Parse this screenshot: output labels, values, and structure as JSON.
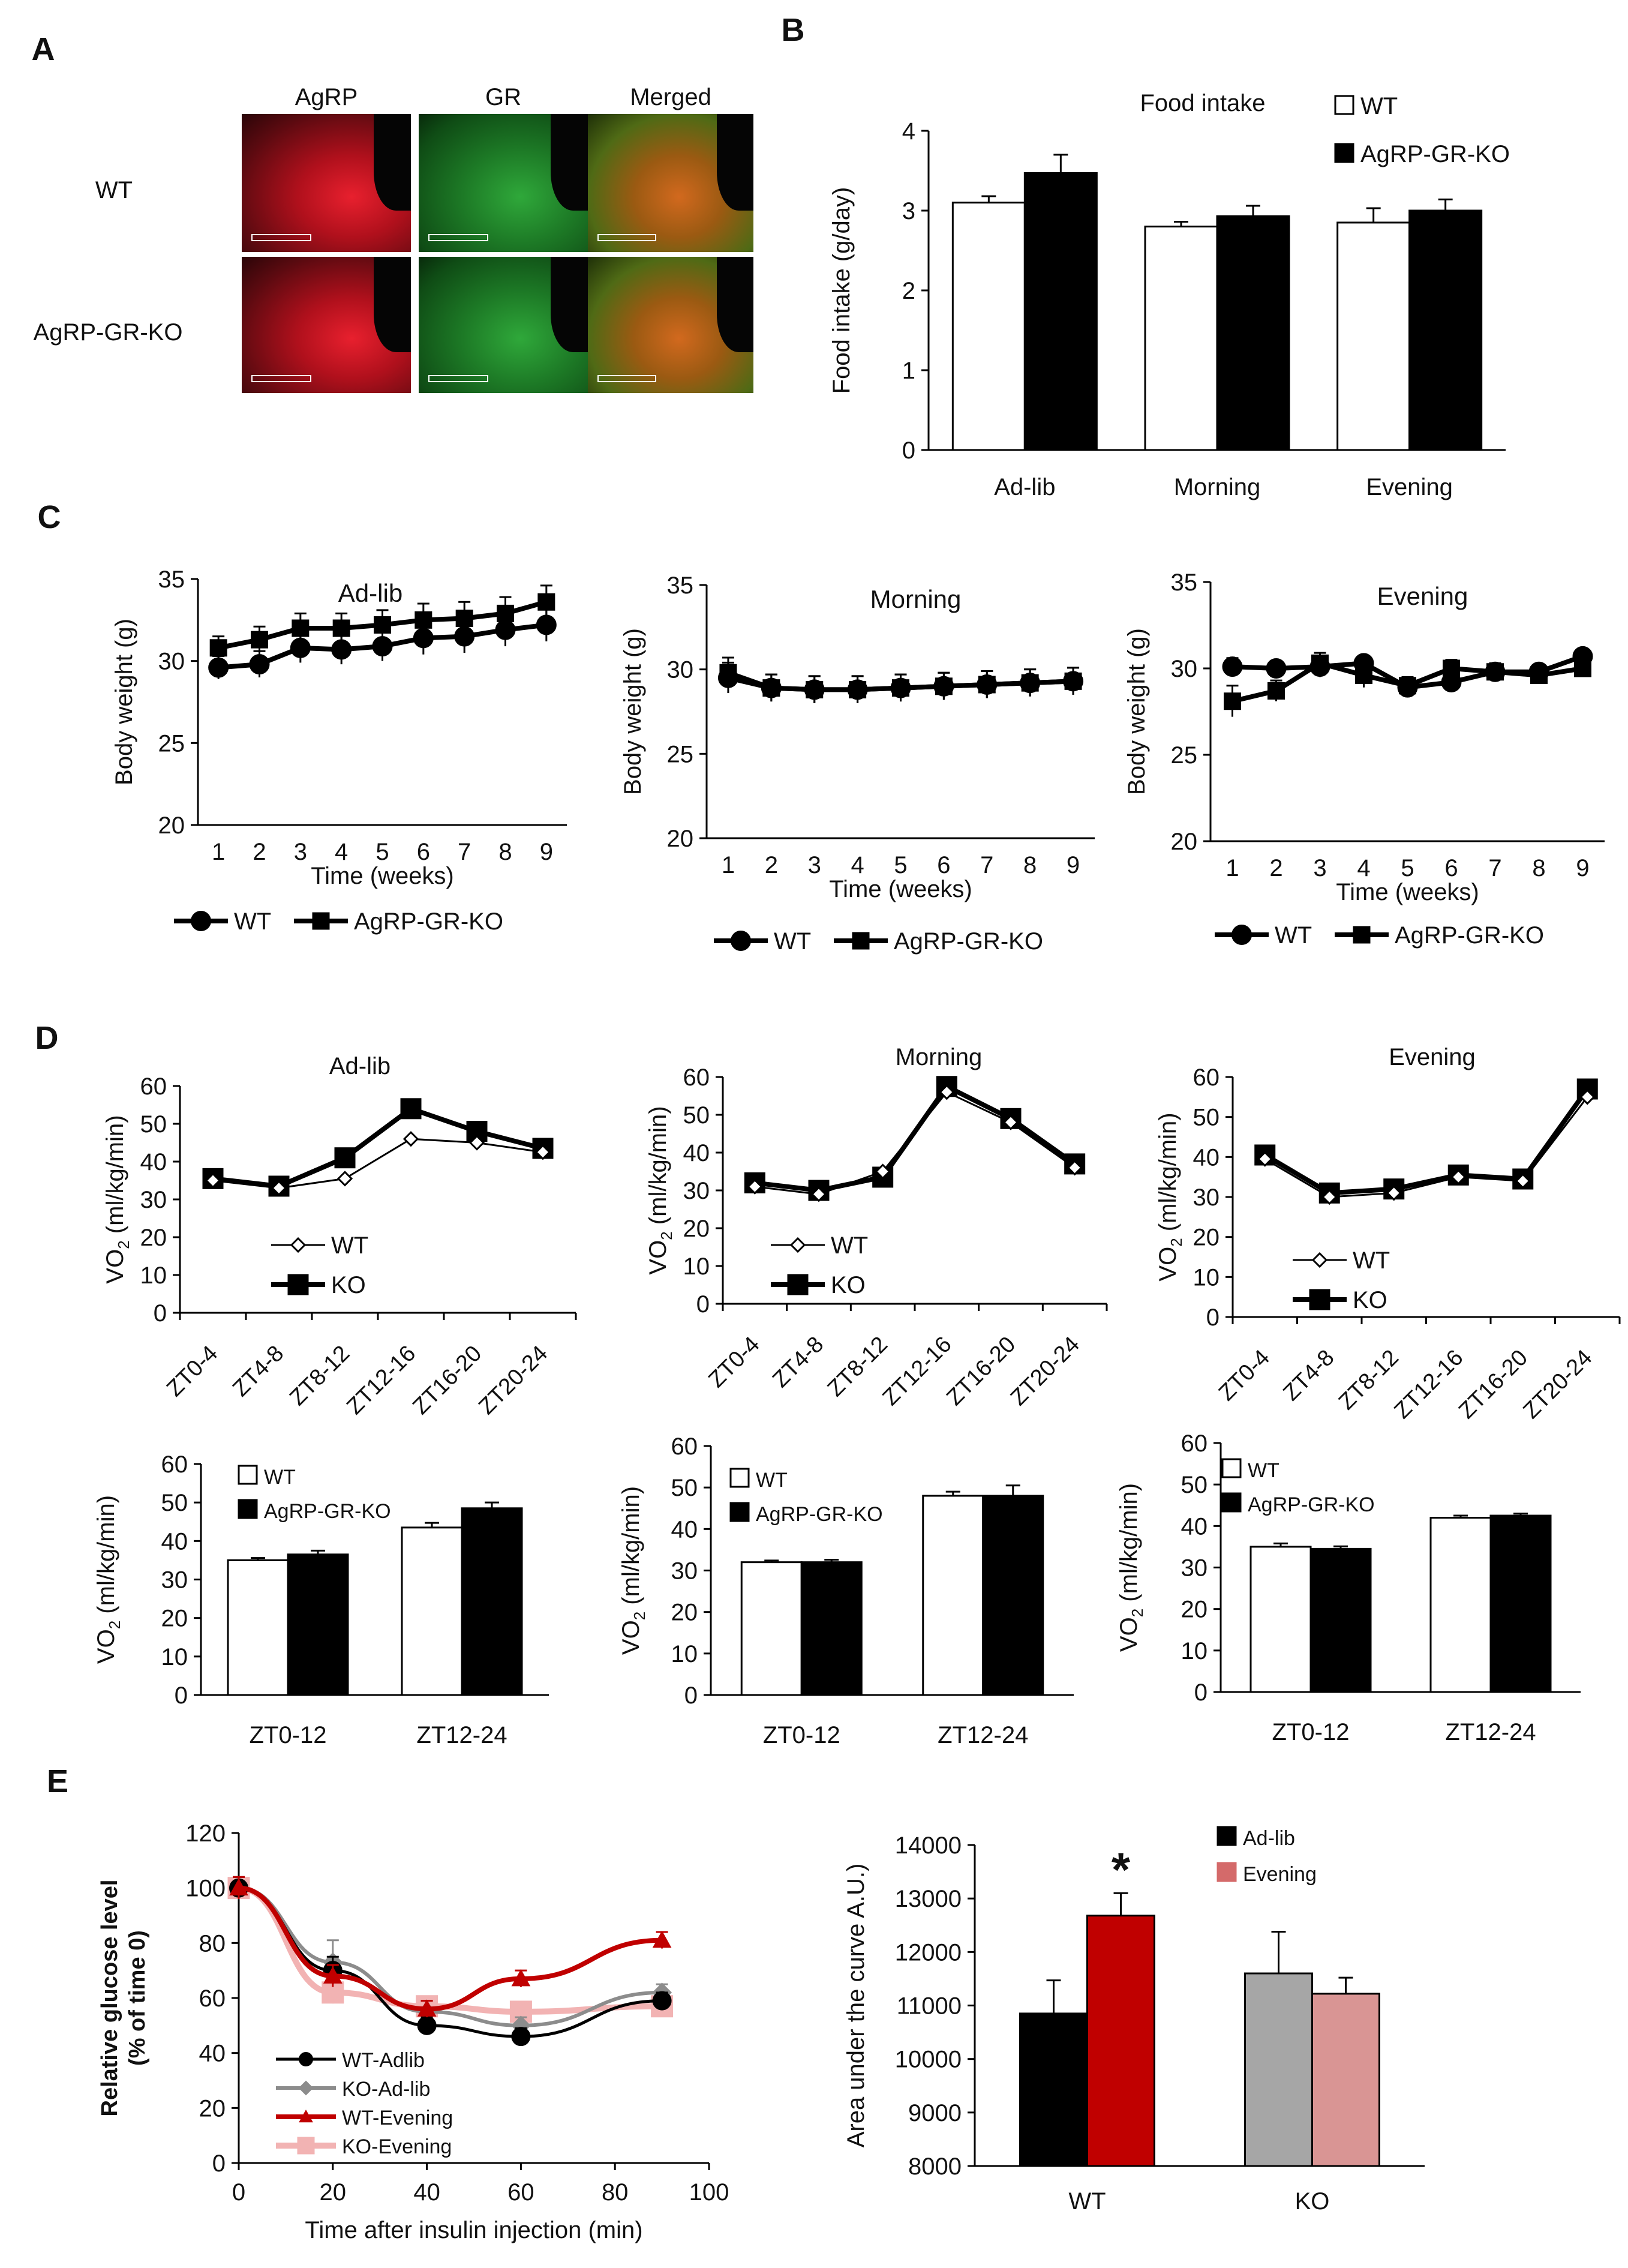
{
  "panel_letters": [
    "A",
    "B",
    "C",
    "D",
    "E"
  ],
  "micrograph": {
    "column_labels": [
      "AgRP",
      "GR",
      "Merged"
    ],
    "row_labels": [
      "WT",
      "AgRP-GR-KO"
    ]
  },
  "chart_data": [
    {
      "id": "B",
      "type": "bar",
      "title": "Food intake",
      "xlabel": "",
      "ylabel": "Food intake (g/day)",
      "categories": [
        "Ad-lib",
        "Morning",
        "Evening"
      ],
      "series": [
        {
          "name": "WT",
          "fill": "#ffffff",
          "values": [
            3.1,
            2.8,
            2.85
          ],
          "errors": [
            0.08,
            0.06,
            0.18
          ]
        },
        {
          "name": "AgRP-GR-KO",
          "fill": "#000000",
          "values": [
            3.47,
            2.93,
            3.0
          ],
          "errors": [
            0.23,
            0.13,
            0.14
          ]
        }
      ],
      "ylim": [
        0,
        4
      ],
      "yticks": [
        "0",
        "1",
        "2",
        "3",
        "4"
      ],
      "legend": "top-right"
    },
    {
      "id": "C1",
      "type": "line",
      "title": "Ad-lib",
      "xlabel": "Time (weeks)",
      "ylabel": "Body weight (g)",
      "x": [
        "1",
        "2",
        "3",
        "4",
        "5",
        "6",
        "7",
        "8",
        "9"
      ],
      "series": [
        {
          "name": "WT",
          "marker": "circle",
          "values": [
            29.6,
            29.8,
            30.8,
            30.7,
            30.9,
            31.4,
            31.5,
            31.9,
            32.2
          ],
          "errors": [
            0.7,
            0.8,
            0.9,
            0.9,
            0.9,
            1.0,
            1.0,
            1.0,
            1.0
          ]
        },
        {
          "name": "AgRP-GR-KO",
          "marker": "square",
          "values": [
            30.8,
            31.3,
            32.0,
            32.0,
            32.2,
            32.5,
            32.6,
            32.9,
            33.6
          ],
          "errors": [
            0.7,
            0.8,
            0.9,
            0.9,
            0.9,
            1.0,
            1.0,
            1.0,
            1.0
          ]
        }
      ],
      "ylim": [
        20,
        35
      ],
      "yticks": [
        "20",
        "25",
        "30",
        "35"
      ],
      "legend": "bottom"
    },
    {
      "id": "C2",
      "type": "line",
      "title": "Morning",
      "xlabel": "Time (weeks)",
      "ylabel": "Body weight (g)",
      "x": [
        "1",
        "2",
        "3",
        "4",
        "5",
        "6",
        "7",
        "8",
        "9"
      ],
      "series": [
        {
          "name": "WT",
          "marker": "circle",
          "values": [
            29.5,
            28.9,
            28.8,
            28.8,
            28.9,
            29.0,
            29.1,
            29.2,
            29.3
          ],
          "errors": [
            0.9,
            0.8,
            0.8,
            0.8,
            0.8,
            0.8,
            0.8,
            0.8,
            0.8
          ]
        },
        {
          "name": "AgRP-GR-KO",
          "marker": "square",
          "values": [
            29.8,
            28.9,
            28.8,
            28.8,
            28.9,
            29.0,
            29.1,
            29.2,
            29.3
          ],
          "errors": [
            0.9,
            0.8,
            0.8,
            0.8,
            0.8,
            0.8,
            0.8,
            0.8,
            0.8
          ]
        }
      ],
      "ylim": [
        20,
        35
      ],
      "yticks": [
        "20",
        "25",
        "30",
        "35"
      ],
      "legend": "bottom"
    },
    {
      "id": "C3",
      "type": "line",
      "title": "Evening",
      "xlabel": "Time (weeks)",
      "ylabel": "Body weight (g)",
      "x": [
        "1",
        "2",
        "3",
        "4",
        "5",
        "6",
        "7",
        "8",
        "9"
      ],
      "series": [
        {
          "name": "WT",
          "marker": "circle",
          "values": [
            30.1,
            30.0,
            30.1,
            30.3,
            28.9,
            29.2,
            29.8,
            29.8,
            30.7
          ],
          "errors": [
            0.5,
            0.4,
            0.6,
            0.4,
            0.4,
            0.4,
            0.4,
            0.4,
            0.4
          ]
        },
        {
          "name": "AgRP-GR-KO",
          "marker": "square",
          "values": [
            28.1,
            28.7,
            30.3,
            29.6,
            29.0,
            30.0,
            29.8,
            29.6,
            30.0
          ],
          "errors": [
            0.9,
            0.6,
            0.6,
            0.7,
            0.5,
            0.5,
            0.5,
            0.5,
            0.5
          ]
        }
      ],
      "ylim": [
        20,
        35
      ],
      "yticks": [
        "20",
        "25",
        "30",
        "35"
      ],
      "legend": "bottom"
    },
    {
      "id": "D1",
      "type": "line",
      "title": "Ad-lib",
      "xlabel": "",
      "ylabel": "VO2 (ml/kg/min)",
      "x": [
        "ZT0-4",
        "ZT4-8",
        "ZT8-12",
        "ZT12-16",
        "ZT16-20",
        "ZT20-24"
      ],
      "series": [
        {
          "name": "WT",
          "marker": "diamond-open",
          "values": [
            35,
            33,
            35.5,
            46,
            45,
            42.5
          ]
        },
        {
          "name": "KO",
          "marker": "square",
          "values": [
            35.5,
            33.5,
            41,
            54,
            48,
            43.5
          ]
        }
      ],
      "ylim": [
        0,
        60
      ],
      "yticks": [
        "0",
        "10",
        "20",
        "30",
        "40",
        "50",
        "60"
      ],
      "legend": "center-left"
    },
    {
      "id": "D2",
      "type": "line",
      "title": "Morning",
      "xlabel": "",
      "ylabel": "VO2 (ml/kg/min)",
      "x": [
        "ZT0-4",
        "ZT4-8",
        "ZT8-12",
        "ZT12-16",
        "ZT16-20",
        "ZT20-24"
      ],
      "series": [
        {
          "name": "WT",
          "marker": "diamond-open",
          "values": [
            31,
            29,
            35,
            56,
            48,
            36
          ]
        },
        {
          "name": "KO",
          "marker": "square",
          "values": [
            32,
            30,
            33.5,
            57.5,
            49,
            37
          ]
        }
      ],
      "ylim": [
        0,
        60
      ],
      "yticks": [
        "0",
        "10",
        "20",
        "30",
        "40",
        "50",
        "60"
      ],
      "legend": "center-left"
    },
    {
      "id": "D3",
      "type": "line",
      "title": "Evening",
      "xlabel": "",
      "ylabel": "VO2 (ml/kg/min)",
      "x": [
        "ZT0-4",
        "ZT4-8",
        "ZT8-12",
        "ZT12-16",
        "ZT16-20",
        "ZT20-24"
      ],
      "series": [
        {
          "name": "WT",
          "marker": "diamond-open",
          "values": [
            39.5,
            30,
            31,
            35,
            34,
            55
          ]
        },
        {
          "name": "KO",
          "marker": "square",
          "values": [
            40.5,
            31,
            32,
            35.5,
            34.5,
            57
          ]
        }
      ],
      "ylim": [
        0,
        60
      ],
      "yticks": [
        "0",
        "10",
        "20",
        "30",
        "40",
        "50",
        "60"
      ],
      "legend": "center-left"
    },
    {
      "id": "D4",
      "type": "bar",
      "title": "",
      "ylabel": "VO2 (ml/kg/min)",
      "categories": [
        "ZT0-12",
        "ZT12-24"
      ],
      "series": [
        {
          "name": "WT",
          "fill": "#ffffff",
          "values": [
            35,
            43.5
          ],
          "errors": [
            0.6,
            1.2
          ]
        },
        {
          "name": "AgRP-GR-KO",
          "fill": "#000000",
          "values": [
            36.5,
            48.5
          ],
          "errors": [
            1.0,
            1.5
          ]
        }
      ],
      "ylim": [
        0,
        60
      ],
      "yticks": [
        "0",
        "10",
        "20",
        "30",
        "40",
        "50",
        "60"
      ],
      "legend": "top-left"
    },
    {
      "id": "D5",
      "type": "bar",
      "title": "",
      "ylabel": "VO2 (ml/kg/min)",
      "categories": [
        "ZT0-12",
        "ZT12-24"
      ],
      "series": [
        {
          "name": "WT",
          "fill": "#ffffff",
          "values": [
            32,
            48
          ],
          "errors": [
            0.4,
            1.0
          ]
        },
        {
          "name": "AgRP-GR-KO",
          "fill": "#000000",
          "values": [
            32,
            48
          ],
          "errors": [
            0.6,
            2.5
          ]
        }
      ],
      "ylim": [
        0,
        60
      ],
      "yticks": [
        "0",
        "10",
        "20",
        "30",
        "40",
        "50",
        "60"
      ],
      "legend": "top-left"
    },
    {
      "id": "D6",
      "type": "bar",
      "title": "",
      "ylabel": "VO2 (ml/kg/min)",
      "categories": [
        "ZT0-12",
        "ZT12-24"
      ],
      "series": [
        {
          "name": "WT",
          "fill": "#ffffff",
          "values": [
            35,
            42
          ],
          "errors": [
            0.8,
            0.5
          ]
        },
        {
          "name": "AgRP-GR-KO",
          "fill": "#000000",
          "values": [
            34.5,
            42.5
          ],
          "errors": [
            0.6,
            0.5
          ]
        }
      ],
      "ylim": [
        0,
        60
      ],
      "yticks": [
        "0",
        "10",
        "20",
        "30",
        "40",
        "50",
        "60"
      ],
      "legend": "top-left"
    },
    {
      "id": "E1",
      "type": "line",
      "title": "",
      "xlabel": "Time after insulin injection (min)",
      "ylabel": "Relative glucose level (% of time 0)",
      "x": [
        0,
        20,
        40,
        60,
        90
      ],
      "xticks": [
        "0",
        "20",
        "40",
        "60",
        "80",
        "100"
      ],
      "xlim": [
        0,
        100
      ],
      "series": [
        {
          "name": "WT-Adlib",
          "color": "#000000",
          "marker": "circle",
          "values": [
            100,
            70,
            50,
            46,
            59
          ],
          "errors": [
            4,
            5,
            3,
            3,
            3
          ]
        },
        {
          "name": "KO-Ad-lib",
          "color": "#8c8c8c",
          "marker": "diamond",
          "values": [
            100,
            73,
            55,
            50,
            62
          ],
          "errors": [
            4,
            8,
            4,
            3,
            3
          ]
        },
        {
          "name": "WT-Evening",
          "color": "#c00000",
          "marker": "triangle",
          "values": [
            100,
            68,
            56,
            67,
            81
          ],
          "errors": [
            4,
            4,
            3,
            3,
            3
          ]
        },
        {
          "name": "KO-Evening",
          "color": "#f2b3b3",
          "marker": "square",
          "values": [
            100,
            62,
            57,
            55,
            57
          ],
          "errors": [
            4,
            4,
            3,
            3,
            3
          ]
        }
      ],
      "ylim": [
        0,
        120
      ],
      "yticks": [
        "0",
        "20",
        "40",
        "60",
        "80",
        "100",
        "120"
      ],
      "legend": "bottom-left"
    },
    {
      "id": "E2",
      "type": "bar",
      "title": "",
      "ylabel": "Area under the curve A.U.)",
      "categories": [
        "WT",
        "KO"
      ],
      "series": [
        {
          "name": "Ad-lib",
          "fills": [
            "#000000",
            "#a6a6a6"
          ],
          "values": [
            10850,
            11600
          ],
          "errors": [
            620,
            780
          ]
        },
        {
          "name": "Evening",
          "fills": [
            "#c00000",
            "#d99594"
          ],
          "values": [
            12680,
            11220
          ],
          "errors": [
            420,
            300
          ]
        }
      ],
      "ylim": [
        8000,
        14000
      ],
      "yticks": [
        "8000",
        "9000",
        "10000",
        "11000",
        "12000",
        "13000",
        "14000"
      ],
      "annotation": "*",
      "legend_colors": [
        "#000000",
        "#d46a6a"
      ],
      "legend": "top-right"
    }
  ]
}
